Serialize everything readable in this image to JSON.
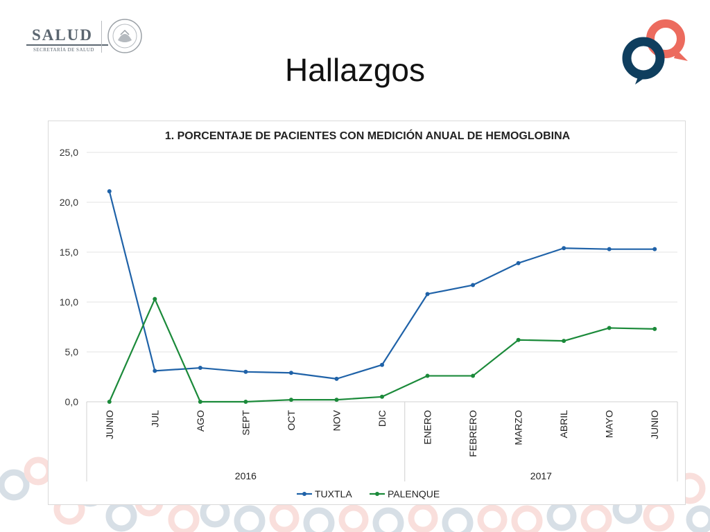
{
  "slide": {
    "title": "Hallazgos"
  },
  "logos": {
    "salud_word": "SALUD",
    "salud_sub": "SECRETARÍA DE SALUD",
    "seal_icon": "mexico-seal-icon",
    "brand_icon": "speech-bubbles-icon"
  },
  "colors": {
    "tuxtla": "#1f62a8",
    "palenque": "#1b8a3a",
    "grid": "#e3e3e3",
    "brand_blue": "#0f3e5e",
    "brand_red": "#ec6b5e"
  },
  "chart_data": {
    "type": "line",
    "title": "1. PORCENTAJE DE PACIENTES CON MEDICIÓN ANUAL DE HEMOGLOBINA",
    "categories": [
      "JUNIO",
      "JUL",
      "AGO",
      "SEPT",
      "OCT",
      "NOV",
      "DIC",
      "ENERO",
      "FEBRERO",
      "MARZO",
      "ABRIL",
      "MAYO",
      "JUNIO"
    ],
    "category_groups": [
      {
        "label": "2016",
        "count": 7
      },
      {
        "label": "2017",
        "count": 6
      }
    ],
    "series": [
      {
        "name": "TUXTLA",
        "color": "#1f62a8",
        "values": [
          21.1,
          3.1,
          3.4,
          3.0,
          2.9,
          2.3,
          3.7,
          10.8,
          11.7,
          13.9,
          15.4,
          15.3,
          15.3
        ]
      },
      {
        "name": "PALENQUE",
        "color": "#1b8a3a",
        "values": [
          0.0,
          10.3,
          0.0,
          0.0,
          0.2,
          0.2,
          0.5,
          2.6,
          2.6,
          6.2,
          6.1,
          7.4,
          7.3
        ]
      }
    ],
    "ylim": [
      0,
      25
    ],
    "yticks": [
      "0,0",
      "5,0",
      "10,0",
      "15,0",
      "20,0",
      "25,0"
    ],
    "grid": true,
    "legend": "bottom"
  }
}
